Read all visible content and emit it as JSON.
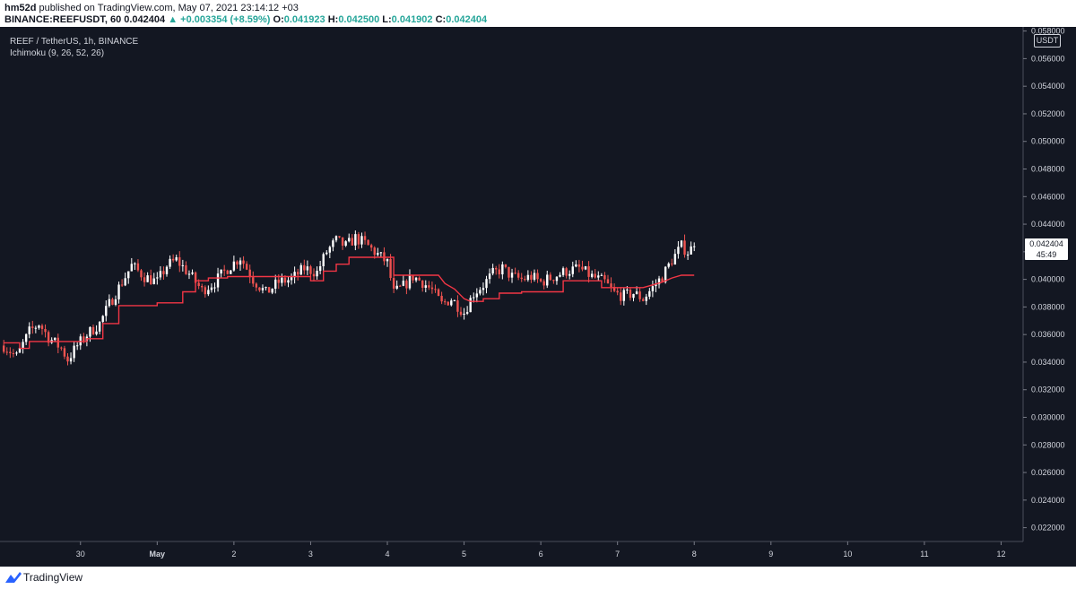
{
  "header": {
    "author": "hm52d",
    "published": "published on TradingView.com, May 07, 2021 23:14:12 +03",
    "symbol": "BINANCE:REEFUSDT, 60",
    "last": "0.042404",
    "change": "▲ +0.003354 (+8.59%)",
    "o_label": "O:",
    "o_value": "0.041923",
    "h_label": "H:",
    "h_value": "0.042500",
    "l_label": "L:",
    "l_value": "0.041902",
    "c_label": "C:",
    "c_value": "0.042404"
  },
  "legend": {
    "title": "REEF / TetherUS, 1h, BINANCE",
    "indicator": "Ichimoku (9, 26, 52, 26)"
  },
  "axis": {
    "currency": "USDT",
    "current_price": "0.042404",
    "countdown": "45:49"
  },
  "footer": {
    "brand": "TradingView"
  },
  "colors": {
    "background": "#131722",
    "up": "#ffffff",
    "down": "#ef5350",
    "indicator": "#f23645",
    "axis_text": "#d1d4dc"
  },
  "chart_data": {
    "type": "candlestick",
    "interval": "1h",
    "ylim": [
      0.021,
      0.0583
    ],
    "y_ticks": [
      "0.058000",
      "0.056000",
      "0.054000",
      "0.052000",
      "0.050000",
      "0.048000",
      "0.046000",
      "0.044000",
      "0.042000",
      "0.040000",
      "0.038000",
      "0.036000",
      "0.034000",
      "0.032000",
      "0.030000",
      "0.028000",
      "0.026000",
      "0.024000",
      "0.022000"
    ],
    "x_ticks": [
      "30",
      "May",
      "2",
      "3",
      "4",
      "5",
      "6",
      "7",
      "8",
      "9",
      "10",
      "11",
      "12"
    ],
    "x_tick_index": [
      24,
      48,
      72,
      96,
      120,
      144,
      168,
      192,
      216,
      240,
      264,
      288,
      312
    ],
    "close_path": [
      [
        0,
        0.0352
      ],
      [
        4,
        0.0344
      ],
      [
        8,
        0.0362
      ],
      [
        11,
        0.0368
      ],
      [
        14,
        0.0358
      ],
      [
        18,
        0.035
      ],
      [
        20,
        0.0342
      ],
      [
        23,
        0.0352
      ],
      [
        26,
        0.036
      ],
      [
        30,
        0.0368
      ],
      [
        33,
        0.0382
      ],
      [
        37,
        0.0398
      ],
      [
        40,
        0.041
      ],
      [
        44,
        0.0402
      ],
      [
        48,
        0.0398
      ],
      [
        51,
        0.041
      ],
      [
        54,
        0.0414
      ],
      [
        58,
        0.0404
      ],
      [
        62,
        0.0392
      ],
      [
        66,
        0.0398
      ],
      [
        70,
        0.0408
      ],
      [
        74,
        0.0416
      ],
      [
        78,
        0.04
      ],
      [
        82,
        0.039
      ],
      [
        86,
        0.0398
      ],
      [
        90,
        0.04
      ],
      [
        94,
        0.0408
      ],
      [
        98,
        0.0405
      ],
      [
        101,
        0.042
      ],
      [
        104,
        0.0428
      ],
      [
        107,
        0.0424
      ],
      [
        110,
        0.043
      ],
      [
        113,
        0.0426
      ],
      [
        116,
        0.042
      ],
      [
        120,
        0.0412
      ],
      [
        122,
        0.039
      ],
      [
        125,
        0.0395
      ],
      [
        128,
        0.0402
      ],
      [
        131,
        0.0398
      ],
      [
        134,
        0.0392
      ],
      [
        137,
        0.0382
      ],
      [
        140,
        0.0386
      ],
      [
        144,
        0.0376
      ],
      [
        147,
        0.039
      ],
      [
        150,
        0.0396
      ],
      [
        153,
        0.0404
      ],
      [
        156,
        0.0408
      ],
      [
        159,
        0.0402
      ],
      [
        162,
        0.04
      ],
      [
        165,
        0.0402
      ],
      [
        168,
        0.0398
      ],
      [
        172,
        0.0402
      ],
      [
        176,
        0.0406
      ],
      [
        180,
        0.0408
      ],
      [
        184,
        0.0402
      ],
      [
        188,
        0.0398
      ],
      [
        191,
        0.039
      ],
      [
        194,
        0.0388
      ],
      [
        197,
        0.039
      ],
      [
        200,
        0.0386
      ],
      [
        203,
        0.0394
      ],
      [
        206,
        0.0402
      ],
      [
        209,
        0.0414
      ],
      [
        212,
        0.0424
      ],
      [
        214,
        0.042
      ],
      [
        216,
        0.0424
      ]
    ],
    "series": [
      {
        "name": "Ichimoku (9, 26, 52, 26)",
        "points": [
          [
            0,
            0.0354
          ],
          [
            5,
            0.0354
          ],
          [
            5,
            0.035
          ],
          [
            8,
            0.035
          ],
          [
            8,
            0.0355
          ],
          [
            26,
            0.0355
          ],
          [
            26,
            0.0357
          ],
          [
            31,
            0.0357
          ],
          [
            31,
            0.0368
          ],
          [
            36,
            0.0368
          ],
          [
            36,
            0.0381
          ],
          [
            48,
            0.0381
          ],
          [
            48,
            0.0383
          ],
          [
            56,
            0.0383
          ],
          [
            56,
            0.0391
          ],
          [
            60,
            0.0391
          ],
          [
            60,
            0.0399
          ],
          [
            64,
            0.0399
          ],
          [
            64,
            0.0401
          ],
          [
            70,
            0.0401
          ],
          [
            70,
            0.0402
          ],
          [
            96,
            0.0402
          ],
          [
            96,
            0.0399
          ],
          [
            100,
            0.0399
          ],
          [
            100,
            0.0406
          ],
          [
            104,
            0.0406
          ],
          [
            104,
            0.0411
          ],
          [
            108,
            0.0411
          ],
          [
            108,
            0.0416
          ],
          [
            122,
            0.0416
          ],
          [
            122,
            0.0403
          ],
          [
            136,
            0.0403
          ],
          [
            138,
            0.0397
          ],
          [
            141,
            0.0393
          ],
          [
            144,
            0.0386
          ],
          [
            146,
            0.0384
          ],
          [
            150,
            0.0384
          ],
          [
            150,
            0.0386
          ],
          [
            155,
            0.0386
          ],
          [
            155,
            0.039
          ],
          [
            162,
            0.039
          ],
          [
            162,
            0.0391
          ],
          [
            175,
            0.0391
          ],
          [
            175,
            0.0399
          ],
          [
            187,
            0.0399
          ],
          [
            187,
            0.0394
          ],
          [
            200,
            0.0394
          ],
          [
            203,
            0.0396
          ],
          [
            206,
            0.0398
          ],
          [
            209,
            0.0401
          ],
          [
            212,
            0.0403
          ],
          [
            216,
            0.0403
          ]
        ]
      }
    ]
  }
}
